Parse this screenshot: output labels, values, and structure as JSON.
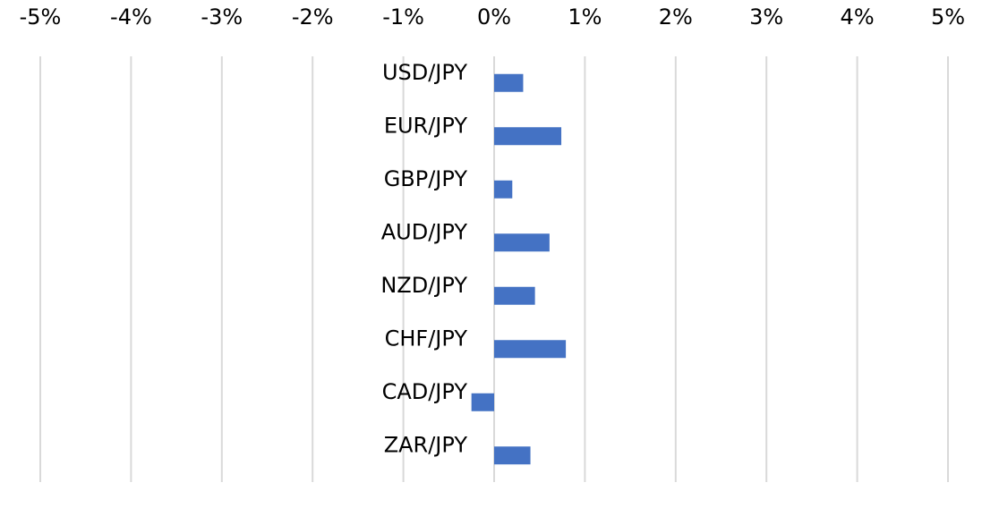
{
  "chart_data": {
    "type": "bar",
    "orientation": "horizontal",
    "categories": [
      "USD/JPY",
      "EUR/JPY",
      "GBP/JPY",
      "AUD/JPY",
      "NZD/JPY",
      "CHF/JPY",
      "CAD/JPY",
      "ZAR/JPY"
    ],
    "values": [
      0.32,
      0.74,
      0.2,
      0.61,
      0.45,
      0.79,
      -0.25,
      0.4
    ],
    "xlim": [
      -5,
      5
    ],
    "xticks": [
      -5,
      -4,
      -3,
      -2,
      -1,
      0,
      1,
      2,
      3,
      4,
      5
    ],
    "tick_labels": [
      "-5%",
      "-4%",
      "-3%",
      "-2%",
      "-1%",
      "0%",
      "1%",
      "2%",
      "3%",
      "4%",
      "5%"
    ],
    "axis_position": "top",
    "grid": true,
    "legend": "none",
    "bar_color": "#4472c4",
    "grid_color": "#d9d9d9"
  }
}
